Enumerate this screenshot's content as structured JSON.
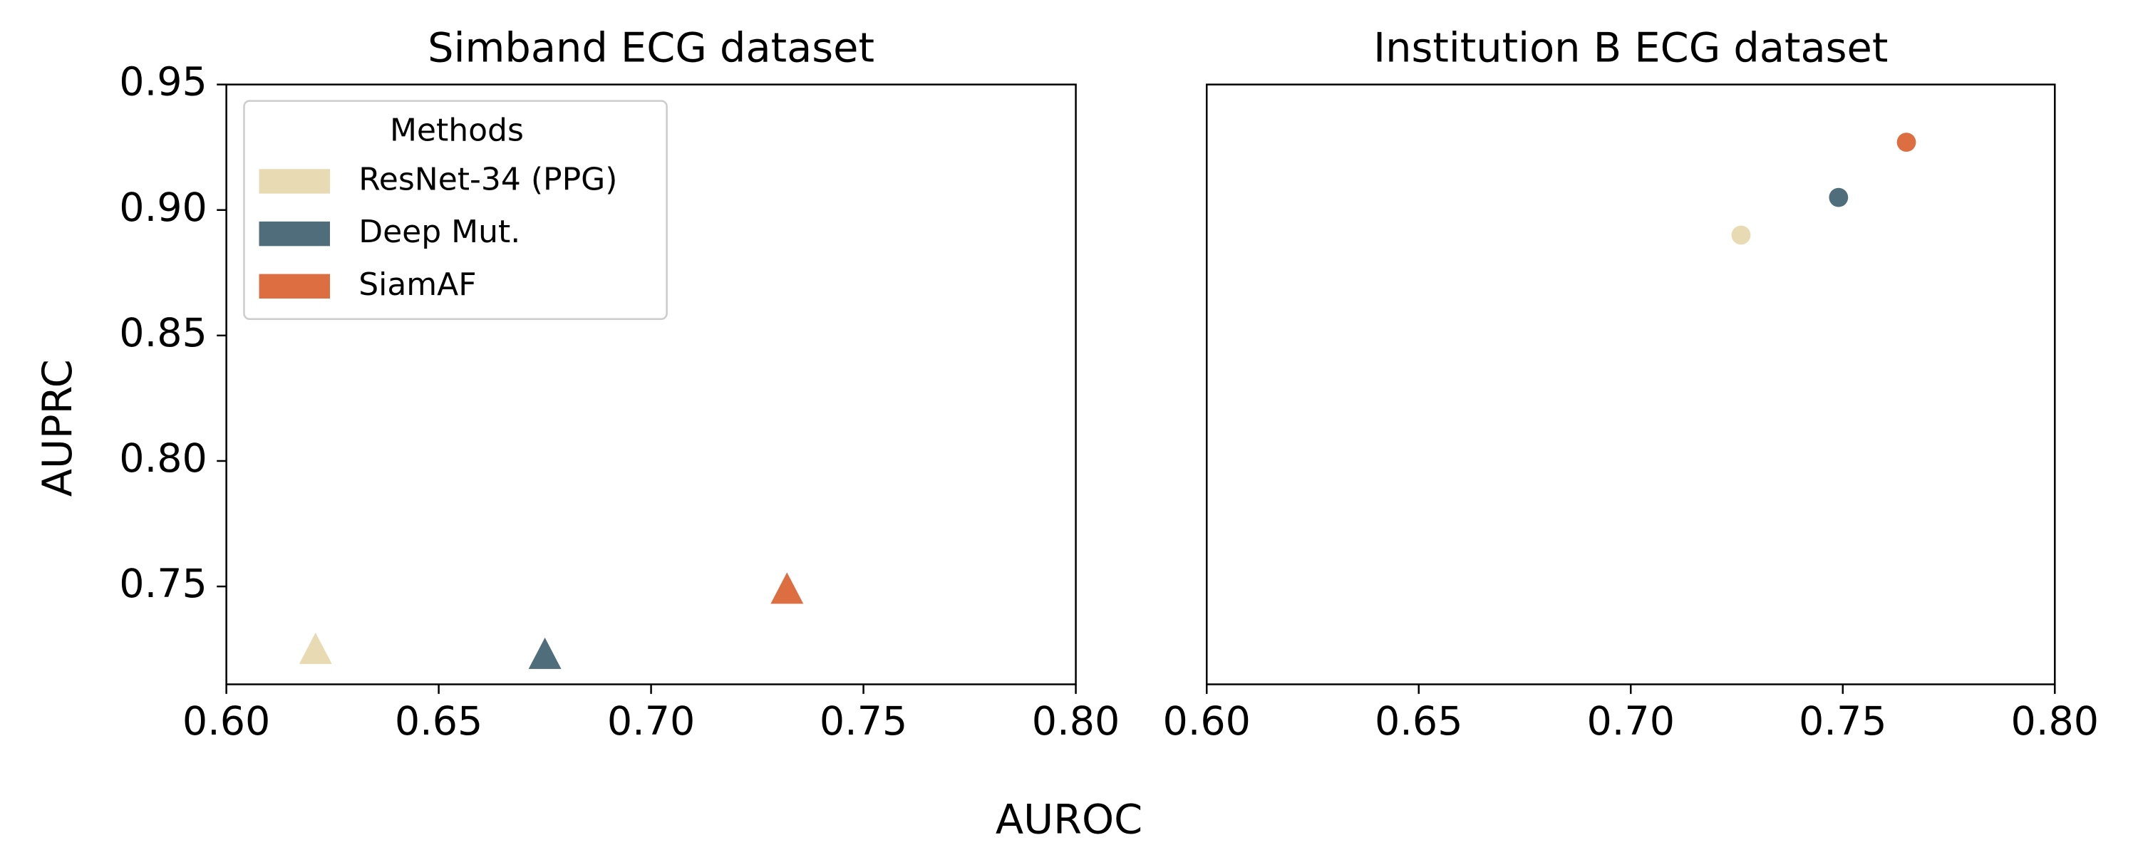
{
  "chart_data": [
    {
      "type": "scatter",
      "title": "Simband ECG dataset",
      "marker": "triangle",
      "legend": "upper left",
      "legend_title": "Methods",
      "xlim": [
        0.6,
        0.8
      ],
      "xticks": [
        {
          "value": 0.6,
          "label": "0.60"
        },
        0.65,
        {
          "value": 0.7,
          "label": "0.70"
        },
        0.75,
        {
          "value": 0.8,
          "label": "0.80"
        }
      ],
      "ylim": [
        0.711,
        0.95
      ],
      "yticks": [
        0.95,
        {
          "value": 0.9,
          "label": "0.90"
        },
        0.85,
        {
          "value": 0.8,
          "label": "0.80"
        },
        0.75
      ],
      "series": [
        {
          "name": "ResNet-34 (PPG)",
          "color": "#e8dbb3",
          "x": [
            0.621
          ],
          "values": [
            0.724
          ]
        },
        {
          "name": "Deep Mut.",
          "color": "#4f6d7a",
          "x": [
            0.675
          ],
          "values": [
            0.722
          ]
        },
        {
          "name": "SiamAF",
          "color": "#dd6e42",
          "x": [
            0.732
          ],
          "values": [
            0.748
          ]
        }
      ]
    },
    {
      "type": "scatter",
      "title": "Institution B ECG dataset",
      "marker": "circle",
      "xlim": [
        0.6,
        0.8
      ],
      "xticks": [
        {
          "value": 0.6,
          "label": "0.60"
        },
        0.65,
        {
          "value": 0.7,
          "label": "0.70"
        },
        0.75,
        {
          "value": 0.8,
          "label": "0.80"
        }
      ],
      "ylim": [
        0.711,
        0.95
      ],
      "series": [
        {
          "color": "#e8dbb3",
          "x": [
            0.726
          ],
          "values": [
            0.89
          ]
        },
        {
          "color": "#4f6d7a",
          "x": [
            0.749
          ],
          "values": [
            0.905
          ]
        },
        {
          "color": "#dd6e42",
          "x": [
            0.765
          ],
          "values": [
            0.927
          ]
        }
      ]
    }
  ],
  "x_label": "AUROC",
  "y_label": "AUPRC"
}
